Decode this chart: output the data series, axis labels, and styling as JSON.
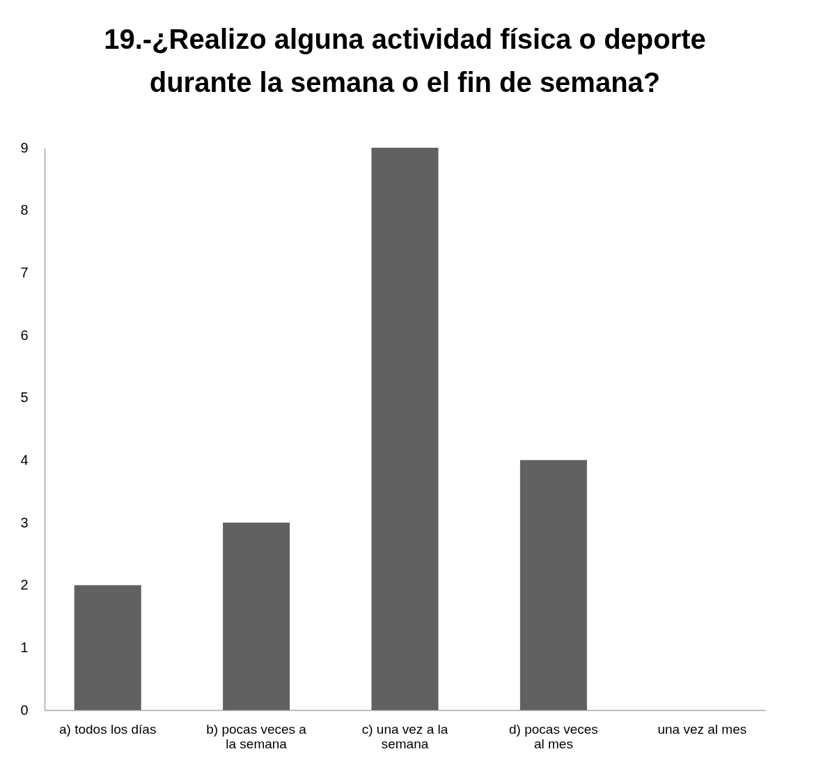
{
  "chart_data": {
    "type": "bar",
    "title": "19.-¿Realizo alguna actividad física o deporte durante la semana o el fin de semana?",
    "categories": [
      "a) todos los días",
      "b) pocas veces a la semana",
      "c) una vez a la semana",
      "d) pocas veces al mes",
      "una vez al mes"
    ],
    "values": [
      2,
      3,
      9,
      4,
      0
    ],
    "color": "#616161",
    "ylim": [
      0,
      9
    ],
    "yticks": [
      0,
      1,
      2,
      3,
      4,
      5,
      6,
      7,
      8,
      9
    ],
    "grid": false
  }
}
